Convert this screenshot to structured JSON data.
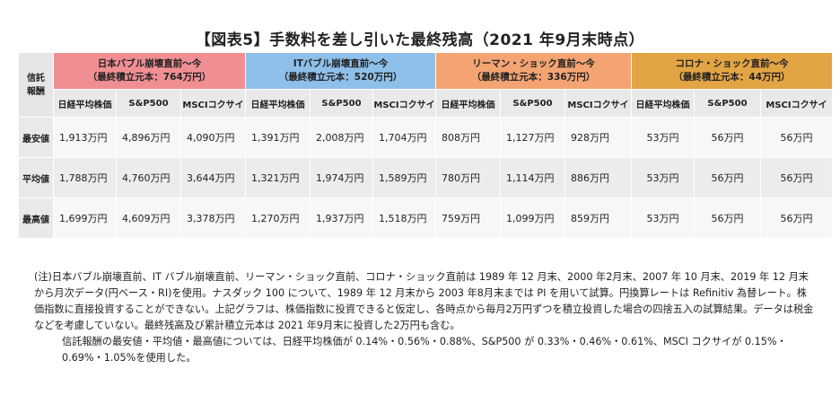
{
  "title": "【図表5】手数料を差し引いた最終残高（2021 年9月末時点）",
  "table": {
    "corner_label": "信託\n報酬",
    "groups": [
      {
        "line1": "日本バブル崩壊直前～今",
        "line2": "（最終積立元本：764万円）",
        "color": "#f08f93"
      },
      {
        "line1": "ITバブル崩壊直前～今",
        "line2": "（最終積立元本：520万円）",
        "color": "#8fc0ea"
      },
      {
        "line1": "リーマン・ショック直前～今",
        "line2": "（最終積立元本：336万円）",
        "color": "#f4a472"
      },
      {
        "line1": "コロナ・ショック直前～今",
        "line2": "（最終積立元本：44万円）",
        "color": "#e3a443"
      }
    ],
    "subheaders": [
      "日経平均株価",
      "S&P500",
      "MSCIコクサイ"
    ],
    "rows": [
      {
        "label": "最安値",
        "values": [
          "1,913万円",
          "4,896万円",
          "4,090万円",
          "1,391万円",
          "2,008万円",
          "1,704万円",
          "808万円",
          "1,127万円",
          "928万円",
          "53万円",
          "56万円",
          "56万円"
        ]
      },
      {
        "label": "平均値",
        "values": [
          "1,788万円",
          "4,760万円",
          "3,644万円",
          "1,321万円",
          "1,974万円",
          "1,589万円",
          "780万円",
          "1,114万円",
          "886万円",
          "53万円",
          "56万円",
          "56万円"
        ]
      },
      {
        "label": "最高値",
        "values": [
          "1,699万円",
          "4,609万円",
          "3,378万円",
          "1,270万円",
          "1,937万円",
          "1,518万円",
          "759万円",
          "1,099万円",
          "859万円",
          "53万円",
          "56万円",
          "56万円"
        ]
      }
    ]
  },
  "note": {
    "para1": "(注)日本バブル崩壊直前、IT バブル崩壊直前、リーマン・ショック直前、コロナ・ショック直前は 1989 年 12 月末、2000 年2月末、2007 年 10 月末、2019 年 12 月末から月次データ(円ベース・RI)を使用。ナスダック 100 について、1989 年 12 月末から 2003 年8月末までは PI を用いて試算。円換算レートは Refinitiv 為替レート。株価指数に直接投資することができない。上記グラフは、株価指数に投資できると仮定し、各時点から毎月2万円ずつを積立投資した場合の四捨五入の試算結果。データは税金などを考慮していない。最終残高及び累計積立元本は 2021 年9月末に投資した2万円も含む。",
    "para2": "信託報酬の最安値・平均値・最高値については、日経平均株価が 0.14%・0.56%・0.88%、S&P500 が 0.33%・0.46%・0.61%、MSCI コクサイが 0.15%・0.69%・1.05%を使用した。"
  }
}
